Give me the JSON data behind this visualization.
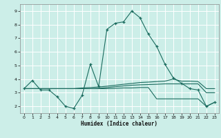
{
  "xlabel": "Humidex (Indice chaleur)",
  "bg_color": "#cceee8",
  "line_color": "#1a6b5e",
  "grid_color": "#ffffff",
  "xlim": [
    -0.5,
    23.5
  ],
  "ylim": [
    1.5,
    9.5
  ],
  "yticks": [
    2,
    3,
    4,
    5,
    6,
    7,
    8,
    9
  ],
  "xticks": [
    0,
    1,
    2,
    3,
    4,
    5,
    6,
    7,
    8,
    9,
    10,
    11,
    12,
    13,
    14,
    15,
    16,
    17,
    18,
    19,
    20,
    21,
    22,
    23
  ],
  "line1_x": [
    0,
    1,
    2,
    3,
    4,
    5,
    6,
    7,
    8,
    9,
    10,
    11,
    12,
    13,
    14,
    15,
    16,
    17,
    18,
    19,
    20,
    21,
    22,
    23
  ],
  "line1_y": [
    3.3,
    3.9,
    3.2,
    3.2,
    2.7,
    2.0,
    1.85,
    2.8,
    5.1,
    3.45,
    7.65,
    8.1,
    8.2,
    9.0,
    8.5,
    7.3,
    6.4,
    5.1,
    4.1,
    3.7,
    3.3,
    3.2,
    2.0,
    2.3
  ],
  "line2_x": [
    0,
    1,
    2,
    3,
    4,
    5,
    6,
    7,
    8,
    9,
    10,
    11,
    12,
    13,
    14,
    15,
    16,
    17,
    18,
    19,
    20,
    21,
    22,
    23
  ],
  "line2_y": [
    3.3,
    3.3,
    3.3,
    3.3,
    3.3,
    3.3,
    3.3,
    3.35,
    3.38,
    3.42,
    3.48,
    3.55,
    3.62,
    3.68,
    3.75,
    3.78,
    3.82,
    3.85,
    4.0,
    3.85,
    3.85,
    3.82,
    3.3,
    3.3
  ],
  "line3_x": [
    0,
    1,
    2,
    3,
    4,
    5,
    6,
    7,
    8,
    9,
    10,
    11,
    12,
    13,
    14,
    15,
    16,
    17,
    18,
    19,
    20,
    21,
    22,
    23
  ],
  "line3_y": [
    3.3,
    3.3,
    3.3,
    3.3,
    3.3,
    3.3,
    3.3,
    3.3,
    3.3,
    3.32,
    3.38,
    3.44,
    3.5,
    3.55,
    3.58,
    3.6,
    3.62,
    3.65,
    3.65,
    3.65,
    3.65,
    3.65,
    3.0,
    3.0
  ],
  "line4_x": [
    0,
    1,
    2,
    3,
    4,
    5,
    6,
    7,
    8,
    9,
    10,
    11,
    12,
    13,
    14,
    15,
    16,
    17,
    18,
    19,
    20,
    21,
    22,
    23
  ],
  "line4_y": [
    3.3,
    3.3,
    3.3,
    3.3,
    3.3,
    3.3,
    3.3,
    3.3,
    3.3,
    3.3,
    3.3,
    3.32,
    3.35,
    3.35,
    3.38,
    3.38,
    2.55,
    2.55,
    2.55,
    2.55,
    2.55,
    2.55,
    2.0,
    2.3
  ]
}
